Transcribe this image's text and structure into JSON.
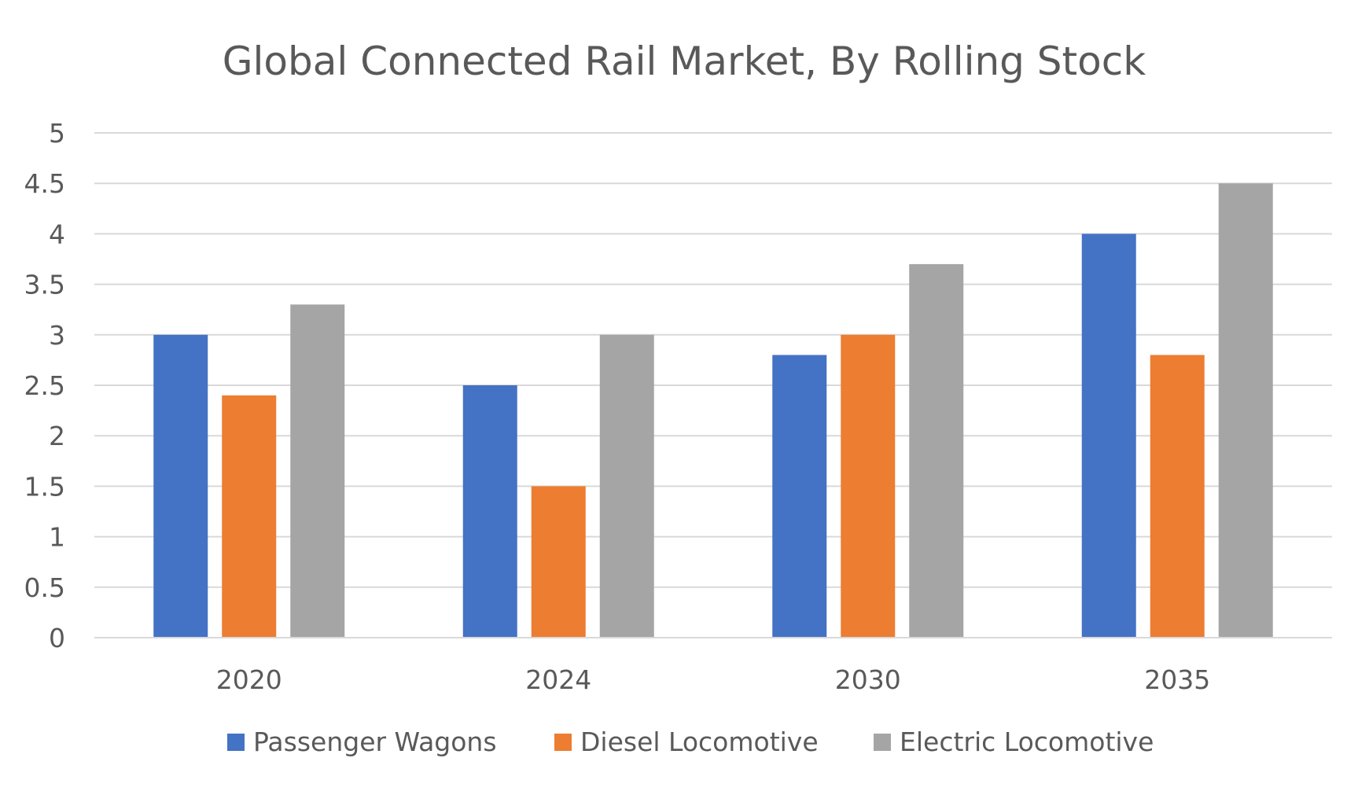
{
  "chart_data": {
    "type": "bar",
    "title": "Global Connected Rail Market, By Rolling Stock",
    "xlabel": "",
    "ylabel": "",
    "categories": [
      "2020",
      "2024",
      "2030",
      "2035"
    ],
    "ylim": [
      0,
      5
    ],
    "yticks": [
      "0",
      "0.5",
      "1",
      "1.5",
      "2",
      "2.5",
      "3",
      "3.5",
      "4",
      "4.5",
      "5"
    ],
    "grid": true,
    "legend_position": "bottom",
    "series": [
      {
        "name": "Passenger Wagons",
        "color": "#4472C4",
        "values": [
          3.0,
          2.5,
          2.8,
          4.0
        ]
      },
      {
        "name": "Diesel Locomotive",
        "color": "#ED7D31",
        "values": [
          2.4,
          1.5,
          3.0,
          2.8
        ]
      },
      {
        "name": "Electric Locomotive",
        "color": "#A5A5A5",
        "values": [
          3.3,
          3.0,
          3.7,
          4.5
        ]
      }
    ]
  }
}
